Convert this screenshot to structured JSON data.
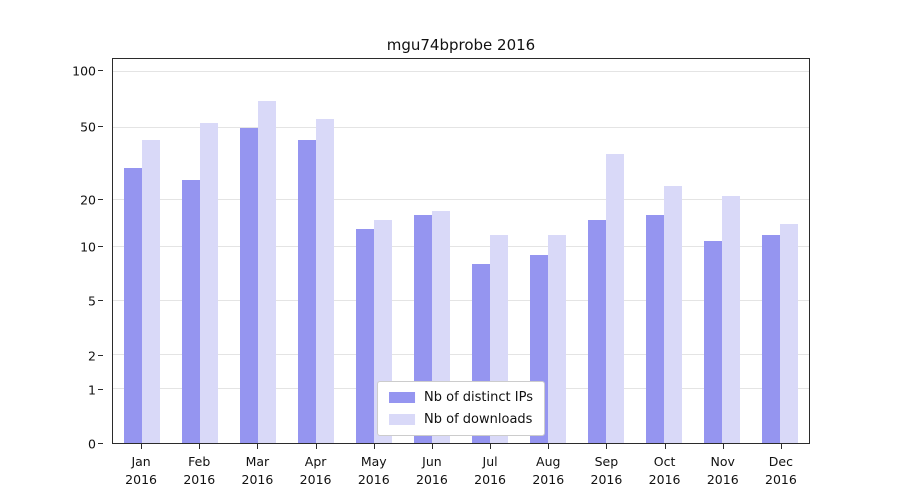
{
  "chart_data": {
    "type": "bar",
    "title": "mgu74bprobe 2016",
    "scale": "symlog",
    "grid": "horizontal",
    "legend_position": "lower center",
    "categories": [
      "Jan",
      "Feb",
      "Mar",
      "Apr",
      "May",
      "Jun",
      "Jul",
      "Aug",
      "Sep",
      "Oct",
      "Nov",
      "Dec"
    ],
    "x_year_label": "2016",
    "y_ticks": [
      0,
      1,
      2,
      5,
      10,
      20,
      50,
      100
    ],
    "ylim": [
      0,
      115
    ],
    "series": [
      {
        "name": "Nb of distinct IPs",
        "color": "#9595f0",
        "values": [
          30,
          26,
          50,
          43,
          13,
          16,
          8,
          9,
          15,
          16,
          11,
          12
        ]
      },
      {
        "name": "Nb of downloads",
        "color": "#d9d9f8",
        "values": [
          43,
          53,
          70,
          56,
          15,
          17,
          12,
          12,
          36,
          24,
          21,
          14
        ]
      }
    ],
    "colors": {
      "gridline": "#e4e4e4",
      "axis": "#2b2b2b",
      "background": "#ffffff"
    }
  }
}
